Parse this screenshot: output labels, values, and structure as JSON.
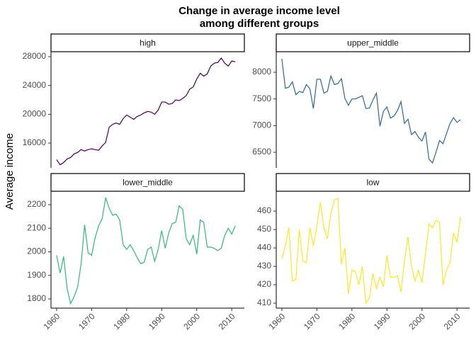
{
  "title": [
    "Change in average income level",
    "among different groups"
  ],
  "y_label": "Average income",
  "chart_data": [
    {
      "type": "line",
      "title": "high",
      "color": "#440154",
      "x": [
        1960,
        1961,
        1962,
        1963,
        1964,
        1965,
        1966,
        1967,
        1968,
        1969,
        1970,
        1971,
        1972,
        1973,
        1974,
        1975,
        1976,
        1977,
        1978,
        1979,
        1980,
        1981,
        1982,
        1983,
        1984,
        1985,
        1986,
        1987,
        1988,
        1989,
        1990,
        1991,
        1992,
        1993,
        1994,
        1995,
        1996,
        1997,
        1998,
        1999,
        2000,
        2001,
        2002,
        2003,
        2004,
        2005,
        2006,
        2007,
        2008,
        2009,
        2010,
        2011
      ],
      "values": [
        13700,
        13000,
        13300,
        13800,
        14000,
        14500,
        14700,
        15100,
        14900,
        15100,
        15200,
        15100,
        15000,
        15600,
        16100,
        18200,
        18600,
        18800,
        18600,
        19400,
        19900,
        19600,
        19300,
        19700,
        19900,
        20200,
        20400,
        20300,
        20000,
        20600,
        21700,
        21700,
        21400,
        21500,
        22000,
        21900,
        22200,
        22600,
        23500,
        23800,
        24900,
        25700,
        25300,
        25600,
        26700,
        27100,
        27200,
        27800,
        27100,
        26700,
        27400,
        27300
      ],
      "xlim": [
        1958.4,
        2013.6
      ],
      "ylim": [
        12560,
        28690
      ],
      "yticks": [
        16000,
        20000,
        24000,
        28000
      ]
    },
    {
      "type": "line",
      "title": "upper_middle",
      "color": "#31688e",
      "x": [
        1960,
        1961,
        1962,
        1963,
        1964,
        1965,
        1966,
        1967,
        1968,
        1969,
        1970,
        1971,
        1972,
        1973,
        1974,
        1975,
        1976,
        1977,
        1978,
        1979,
        1980,
        1981,
        1982,
        1983,
        1984,
        1985,
        1986,
        1987,
        1988,
        1989,
        1990,
        1991,
        1992,
        1993,
        1994,
        1995,
        1996,
        1997,
        1998,
        1999,
        2000,
        2001,
        2002,
        2003,
        2004,
        2005,
        2006,
        2007,
        2008,
        2009,
        2010,
        2011
      ],
      "values": [
        8250,
        7700,
        7720,
        7820,
        7580,
        7640,
        7620,
        7770,
        7690,
        7320,
        7870,
        7870,
        7610,
        7640,
        7930,
        7770,
        7790,
        7880,
        7510,
        7380,
        7500,
        7500,
        7530,
        7560,
        7320,
        7330,
        7480,
        7610,
        6990,
        7270,
        7350,
        7140,
        7180,
        7280,
        7450,
        7040,
        7120,
        6830,
        6890,
        6780,
        6710,
        6880,
        6370,
        6300,
        6500,
        6720,
        6660,
        6850,
        7040,
        7150,
        7060,
        7110
      ],
      "xlim": [
        1958.4,
        2013.6
      ],
      "ylim": [
        6208,
        8385
      ],
      "yticks": [
        6500,
        7000,
        7500,
        8000
      ]
    },
    {
      "type": "line",
      "title": "lower_middle",
      "color": "#35b779",
      "x": [
        1960,
        1961,
        1962,
        1963,
        1964,
        1965,
        1966,
        1967,
        1968,
        1969,
        1970,
        1971,
        1972,
        1973,
        1974,
        1975,
        1976,
        1977,
        1978,
        1979,
        1980,
        1981,
        1982,
        1983,
        1984,
        1985,
        1986,
        1987,
        1988,
        1989,
        1990,
        1991,
        1992,
        1993,
        1994,
        1995,
        1996,
        1997,
        1998,
        1999,
        2000,
        2001,
        2002,
        2003,
        2004,
        2005,
        2006,
        2007,
        2008,
        2009,
        2010,
        2011
      ],
      "values": [
        1985,
        1910,
        1980,
        1845,
        1780,
        1810,
        1850,
        1950,
        2115,
        1995,
        1985,
        2060,
        2110,
        2140,
        2230,
        2185,
        2155,
        2160,
        2135,
        2030,
        2010,
        2030,
        2005,
        1975,
        1950,
        1955,
        2010,
        2020,
        1960,
        2010,
        2090,
        2015,
        2080,
        2120,
        2125,
        2195,
        2180,
        2055,
        2030,
        2070,
        1990,
        2135,
        2125,
        2020,
        2020,
        2015,
        2005,
        2015,
        2070,
        2100,
        2075,
        2110
      ],
      "xlim": [
        1958.4,
        2013.6
      ],
      "ylim": [
        1761,
        2257
      ],
      "yticks": [
        1800,
        1900,
        2000,
        2100,
        2200
      ],
      "xticks": [
        1960,
        1970,
        1980,
        1990,
        2000,
        2010
      ]
    },
    {
      "type": "line",
      "title": "low",
      "color": "#fde725",
      "x": [
        1960,
        1961,
        1962,
        1963,
        1964,
        1965,
        1966,
        1967,
        1968,
        1969,
        1970,
        1971,
        1972,
        1973,
        1974,
        1975,
        1976,
        1977,
        1978,
        1979,
        1980,
        1981,
        1982,
        1983,
        1984,
        1985,
        1986,
        1987,
        1988,
        1989,
        1990,
        1991,
        1992,
        1993,
        1994,
        1995,
        1996,
        1997,
        1998,
        1999,
        2000,
        2001,
        2002,
        2003,
        2004,
        2005,
        2006,
        2007,
        2008,
        2009,
        2010,
        2011
      ],
      "values": [
        434,
        441,
        451,
        422,
        423,
        450,
        433,
        432,
        451,
        441,
        452,
        465,
        451,
        445,
        459,
        466,
        467,
        431,
        440,
        415,
        428,
        427,
        420,
        430,
        410,
        413,
        426,
        418,
        424,
        419,
        436,
        424,
        424,
        425,
        416,
        433,
        446,
        430,
        422,
        428,
        421,
        437,
        453,
        451,
        455,
        454,
        420,
        428,
        432,
        448,
        443,
        457
      ],
      "xlim": [
        1958.4,
        2013.6
      ],
      "ylim": [
        407.3,
        470.8
      ],
      "yticks": [
        410,
        420,
        430,
        440,
        450,
        460
      ],
      "xticks": [
        1960,
        1970,
        1980,
        1990,
        2000,
        2010
      ]
    }
  ]
}
